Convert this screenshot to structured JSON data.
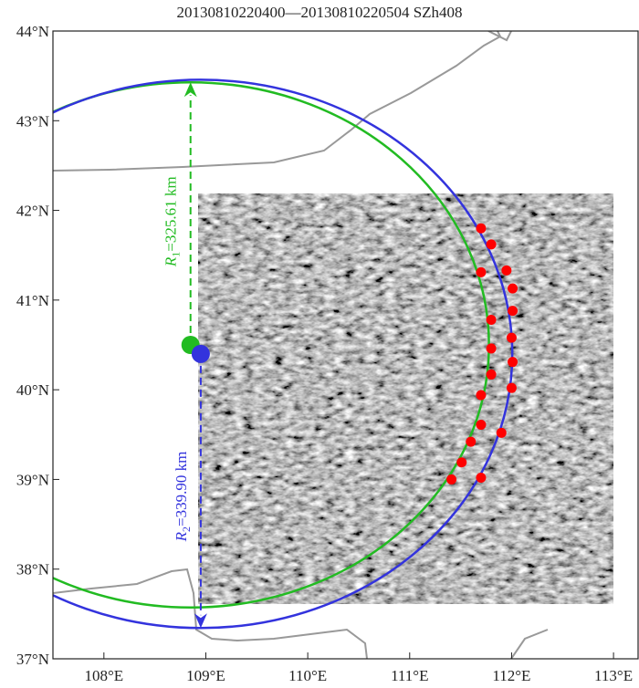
{
  "title": "20130810220400—20130810220504 SZh408",
  "axes": {
    "xlim": [
      107.5,
      113.25
    ],
    "ylim": [
      37,
      44
    ],
    "xticks": [
      {
        "value": 108,
        "label": "108°E"
      },
      {
        "value": 109,
        "label": "109°E"
      },
      {
        "value": 110,
        "label": "110°E"
      },
      {
        "value": 111,
        "label": "111°E"
      },
      {
        "value": 112,
        "label": "112°E"
      },
      {
        "value": 113,
        "label": "113°E"
      }
    ],
    "yticks": [
      {
        "value": 37,
        "label": "37°N"
      },
      {
        "value": 38,
        "label": "38°N"
      },
      {
        "value": 39,
        "label": "39°N"
      },
      {
        "value": 40,
        "label": "40°N"
      },
      {
        "value": 41,
        "label": "41°N"
      },
      {
        "value": 42,
        "label": "42°N"
      },
      {
        "value": 43,
        "label": "43°N"
      },
      {
        "value": 44,
        "label": "44°N"
      }
    ]
  },
  "circles": [
    {
      "color": "#22bb22",
      "center": {
        "lon": 108.85,
        "lat": 40.5
      },
      "radius_km": 325.61,
      "arrow": "up",
      "label": {
        "symbol": "R",
        "sub": "1",
        "text": "=325.61 km"
      }
    },
    {
      "color": "#3333dd",
      "center": {
        "lon": 108.95,
        "lat": 40.4
      },
      "radius_km": 339.9,
      "arrow": "down",
      "label": {
        "symbol": "R",
        "sub": "2",
        "text": "=339.90 km"
      }
    }
  ],
  "points": {
    "color": "#ff0000",
    "list": [
      {
        "lon": 111.7,
        "lat": 41.8
      },
      {
        "lon": 111.8,
        "lat": 41.62
      },
      {
        "lon": 111.95,
        "lat": 41.33
      },
      {
        "lon": 111.7,
        "lat": 41.31
      },
      {
        "lon": 112.01,
        "lat": 41.13
      },
      {
        "lon": 111.8,
        "lat": 40.78
      },
      {
        "lon": 112.01,
        "lat": 40.88
      },
      {
        "lon": 111.8,
        "lat": 40.46
      },
      {
        "lon": 112.0,
        "lat": 40.58
      },
      {
        "lon": 112.01,
        "lat": 40.31
      },
      {
        "lon": 111.8,
        "lat": 40.17
      },
      {
        "lon": 112.0,
        "lat": 40.02
      },
      {
        "lon": 111.7,
        "lat": 39.94
      },
      {
        "lon": 111.7,
        "lat": 39.61
      },
      {
        "lon": 111.9,
        "lat": 39.52
      },
      {
        "lon": 111.6,
        "lat": 39.42
      },
      {
        "lon": 111.51,
        "lat": 39.19
      },
      {
        "lon": 111.41,
        "lat": 39.0
      },
      {
        "lon": 111.7,
        "lat": 39.02
      }
    ]
  }
}
